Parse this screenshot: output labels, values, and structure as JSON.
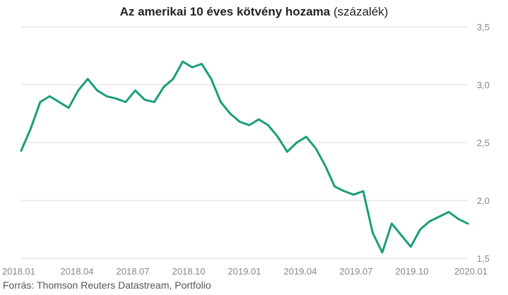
{
  "title": {
    "bold": "Az amerikai 10 éves kötvény hozama",
    "normal": " (százalék)"
  },
  "source": "Forrás: Thomson Reuters Datastream, Portfolio",
  "chart_data": {
    "type": "line",
    "line_color": "#1a9e7a",
    "grid": "horizontal",
    "ylim": [
      1.5,
      3.5
    ],
    "yticks": [
      {
        "v": 1.5,
        "label": "1,5"
      },
      {
        "v": 2.0,
        "label": "2,0"
      },
      {
        "v": 2.5,
        "label": "2,5"
      },
      {
        "v": 3.0,
        "label": "3,0"
      },
      {
        "v": 3.5,
        "label": "3,5"
      }
    ],
    "xticks": [
      "2018.01",
      "2018.04",
      "2018.07",
      "2018.10",
      "2019.01",
      "2019.04",
      "2019.07",
      "2019.10",
      "2020.01"
    ],
    "series": [
      {
        "x": [
          "2018-01",
          "2018-02",
          "2018-02",
          "2018-03",
          "2018-03",
          "2018-04",
          "2018-04",
          "2018-05",
          "2018-05",
          "2018-06",
          "2018-06",
          "2018-07",
          "2018-07",
          "2018-08",
          "2018-08",
          "2018-09",
          "2018-09",
          "2018-10",
          "2018-10",
          "2018-11",
          "2018-11",
          "2018-12",
          "2018-12",
          "2019-01",
          "2019-01",
          "2019-02",
          "2019-02",
          "2019-03",
          "2019-03",
          "2019-04",
          "2019-04",
          "2019-05",
          "2019-05",
          "2019-06",
          "2019-06",
          "2019-07",
          "2019-07",
          "2019-08",
          "2019-08",
          "2019-09",
          "2019-09",
          "2019-10",
          "2019-10",
          "2019-11",
          "2019-11",
          "2019-12",
          "2019-12",
          "2020-01"
        ],
        "values": [
          2.43,
          2.62,
          2.85,
          2.9,
          2.85,
          2.8,
          2.95,
          3.05,
          2.95,
          2.9,
          2.88,
          2.85,
          2.95,
          2.87,
          2.85,
          2.98,
          3.05,
          3.2,
          3.15,
          3.18,
          3.05,
          2.85,
          2.75,
          2.68,
          2.65,
          2.7,
          2.65,
          2.55,
          2.42,
          2.5,
          2.55,
          2.45,
          2.3,
          2.12,
          2.08,
          2.05,
          2.08,
          1.72,
          1.55,
          1.8,
          1.7,
          1.6,
          1.75,
          1.82,
          1.86,
          1.9,
          1.84,
          1.8
        ]
      }
    ]
  }
}
